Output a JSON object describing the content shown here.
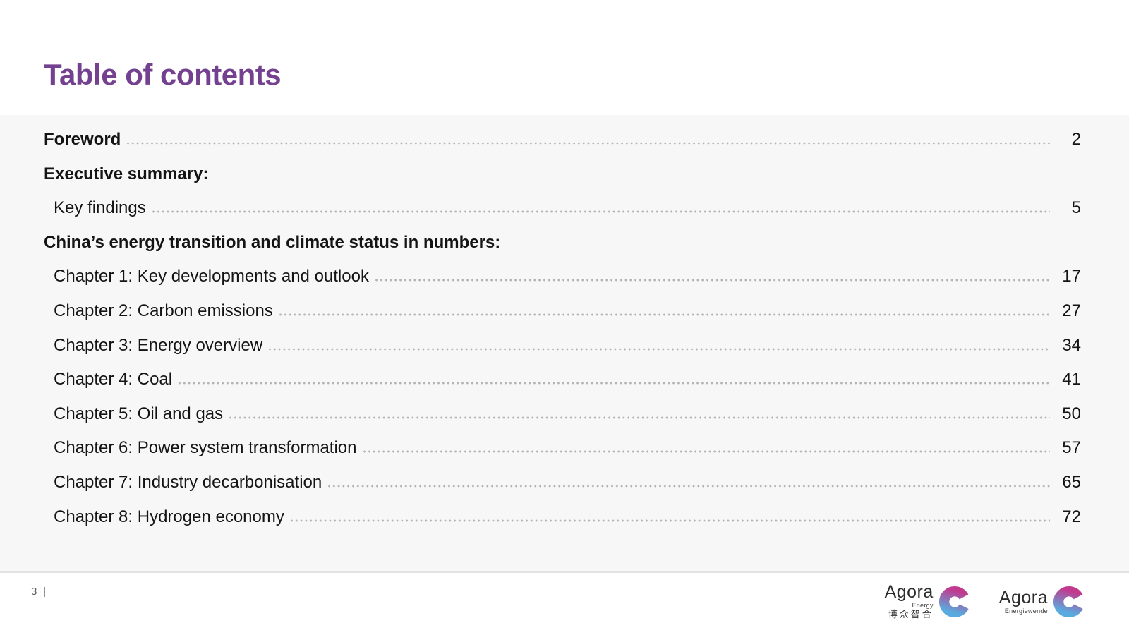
{
  "title": "Table of contents",
  "toc": {
    "entries": [
      {
        "label": "Foreword",
        "page": "2",
        "bold": true,
        "indent": false,
        "leader": true
      },
      {
        "label": "Executive summary:",
        "page": "",
        "bold": true,
        "indent": false,
        "leader": false
      },
      {
        "label": "Key findings",
        "page": "5",
        "bold": false,
        "indent": true,
        "leader": true
      },
      {
        "label": "China’s energy transition and climate status in numbers:",
        "page": "",
        "bold": true,
        "indent": false,
        "leader": false
      },
      {
        "label": "Chapter 1: Key developments and outlook",
        "page": "17",
        "bold": false,
        "indent": true,
        "leader": true
      },
      {
        "label": "Chapter 2: Carbon emissions",
        "page": "27",
        "bold": false,
        "indent": true,
        "leader": true
      },
      {
        "label": "Chapter 3: Energy overview",
        "page": "34",
        "bold": false,
        "indent": true,
        "leader": true
      },
      {
        "label": "Chapter 4: Coal",
        "page": "41",
        "bold": false,
        "indent": true,
        "leader": true
      },
      {
        "label": "Chapter 5: Oil and gas",
        "page": "50",
        "bold": false,
        "indent": true,
        "leader": true
      },
      {
        "label": "Chapter 6: Power system transformation",
        "page": "57",
        "bold": false,
        "indent": true,
        "leader": true
      },
      {
        "label": "Chapter 7: Industry decarbonisation",
        "page": "65",
        "bold": false,
        "indent": true,
        "leader": true
      },
      {
        "label": "Chapter 8: Hydrogen economy",
        "page": "72",
        "bold": false,
        "indent": true,
        "leader": true
      }
    ]
  },
  "footer": {
    "page_number": "3",
    "page_separator": "|",
    "logos": [
      {
        "name": "Agora",
        "subtitle": "Energy",
        "subtitle2": "博众智合"
      },
      {
        "name": "Agora",
        "subtitle": "Energiewende",
        "subtitle2": ""
      }
    ]
  },
  "colors": {
    "title_purple": "#73418f",
    "body_text": "#141414",
    "leader_dots": "#b2b2b2",
    "content_background": "#f7f7f7",
    "content_border": "#e2e2e2",
    "footer_text": "#595959",
    "logo_gradient_top": "#c13a8e",
    "logo_gradient_bottom": "#58abdf"
  }
}
